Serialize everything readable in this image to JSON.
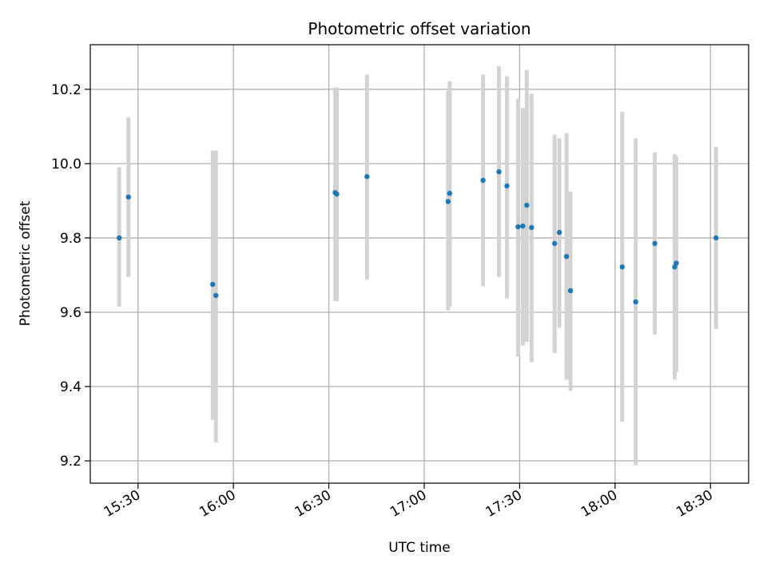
{
  "chart_data": {
    "type": "scatter",
    "title": "Photometric offset variation",
    "xlabel": "UTC time",
    "ylabel": "Photometric offset",
    "x_is_time": true,
    "xlim": [
      "15:15",
      "18:42"
    ],
    "ylim": [
      9.14,
      10.32
    ],
    "xticks": [
      "15:30",
      "16:00",
      "16:30",
      "17:00",
      "17:30",
      "18:00",
      "18:30"
    ],
    "yticks": [
      9.2,
      9.4,
      9.6,
      9.8,
      10.0,
      10.2
    ],
    "ytick_labels": [
      "9.2",
      "9.4",
      "9.6",
      "9.8",
      "10.0",
      "10.2"
    ],
    "grid": true,
    "legend": "none",
    "colors": {
      "point": "#1f77b4",
      "errorbar": "#d3d3d3",
      "grid": "#b0b0b0"
    },
    "points": [
      {
        "t": "15:24:06",
        "y": 9.8,
        "lo": 9.615,
        "hi": 9.99
      },
      {
        "t": "15:27:00",
        "y": 9.91,
        "lo": 9.695,
        "hi": 10.125
      },
      {
        "t": "15:53:30",
        "y": 9.675,
        "lo": 9.31,
        "hi": 10.035
      },
      {
        "t": "15:54:30",
        "y": 9.645,
        "lo": 9.25,
        "hi": 10.035
      },
      {
        "t": "16:32:00",
        "y": 9.922,
        "lo": 9.63,
        "hi": 10.205
      },
      {
        "t": "16:32:30",
        "y": 9.918,
        "lo": 9.63,
        "hi": 10.205
      },
      {
        "t": "16:42:00",
        "y": 9.965,
        "lo": 9.688,
        "hi": 10.24
      },
      {
        "t": "17:07:30",
        "y": 9.898,
        "lo": 9.605,
        "hi": 10.195
      },
      {
        "t": "17:08:00",
        "y": 9.92,
        "lo": 9.615,
        "hi": 10.222
      },
      {
        "t": "17:18:30",
        "y": 9.955,
        "lo": 9.67,
        "hi": 10.24
      },
      {
        "t": "17:23:30",
        "y": 9.978,
        "lo": 9.695,
        "hi": 10.262
      },
      {
        "t": "17:26:00",
        "y": 9.94,
        "lo": 9.637,
        "hi": 10.235
      },
      {
        "t": "17:29:30",
        "y": 9.83,
        "lo": 9.48,
        "hi": 10.175
      },
      {
        "t": "17:31:00",
        "y": 9.832,
        "lo": 9.51,
        "hi": 10.15
      },
      {
        "t": "17:32:15",
        "y": 9.888,
        "lo": 9.52,
        "hi": 10.252
      },
      {
        "t": "17:33:45",
        "y": 9.828,
        "lo": 9.465,
        "hi": 10.188
      },
      {
        "t": "17:41:00",
        "y": 9.785,
        "lo": 9.49,
        "hi": 10.078
      },
      {
        "t": "17:42:30",
        "y": 9.815,
        "lo": 9.558,
        "hi": 10.068
      },
      {
        "t": "17:44:45",
        "y": 9.75,
        "lo": 9.418,
        "hi": 10.082
      },
      {
        "t": "17:46:00",
        "y": 9.658,
        "lo": 9.388,
        "hi": 9.925
      },
      {
        "t": "18:02:15",
        "y": 9.722,
        "lo": 9.305,
        "hi": 10.14
      },
      {
        "t": "18:06:30",
        "y": 9.628,
        "lo": 9.188,
        "hi": 10.068
      },
      {
        "t": "18:12:30",
        "y": 9.785,
        "lo": 9.54,
        "hi": 10.03
      },
      {
        "t": "18:18:45",
        "y": 9.722,
        "lo": 9.418,
        "hi": 10.025
      },
      {
        "t": "18:19:15",
        "y": 9.732,
        "lo": 9.44,
        "hi": 10.02
      },
      {
        "t": "18:31:45",
        "y": 9.8,
        "lo": 9.555,
        "hi": 10.045
      }
    ]
  }
}
